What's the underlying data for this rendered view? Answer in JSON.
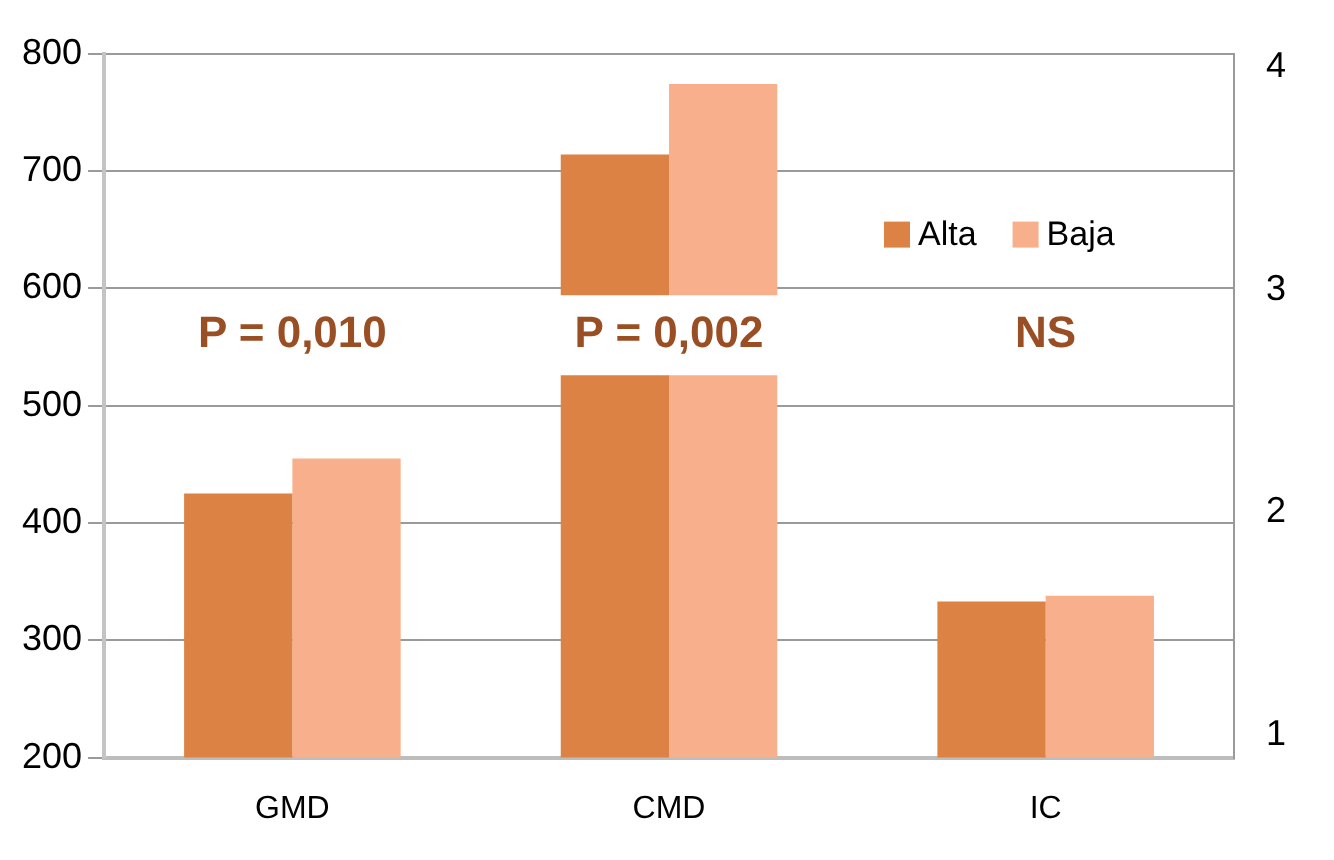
{
  "chart_data": {
    "type": "bar",
    "categories": [
      "GMD",
      "CMD",
      "IC"
    ],
    "series": [
      {
        "name": "Alta",
        "color": "#dc8244",
        "values": [
          425,
          714,
          333
        ]
      },
      {
        "name": "Baja",
        "color": "#f8af8b",
        "values": [
          455,
          774,
          338
        ]
      }
    ],
    "ylim": [
      200,
      800
    ],
    "yticks": [
      200,
      300,
      400,
      500,
      600,
      700,
      800
    ],
    "y2lim": [
      0.9,
      4.06
    ],
    "y2ticks": [
      1,
      2,
      3,
      4
    ],
    "annotations": [
      "P = 0,010",
      "P = 0,002",
      "NS"
    ],
    "grid": "y",
    "legend": "right"
  }
}
